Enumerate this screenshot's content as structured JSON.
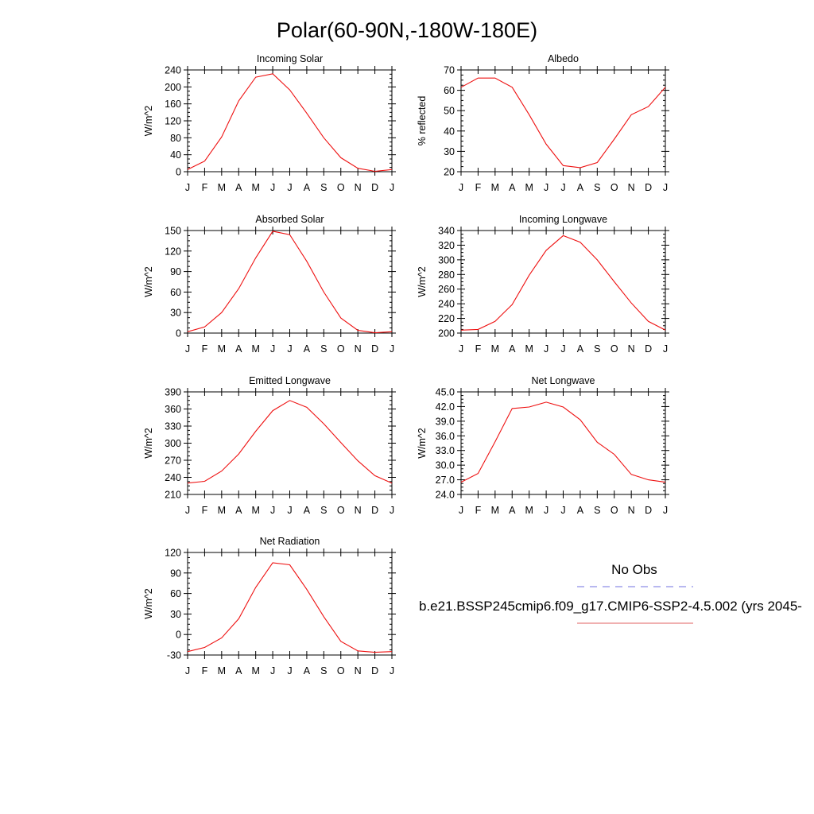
{
  "figure": {
    "title": "Polar(60-90N,-180W-180E)"
  },
  "legend": {
    "obs_label": "No Obs",
    "obs_color": "#7070e0",
    "model_label": "b.e21.BSSP245cmip6.f09_g17.CMIP6-SSP2-4.5.002 (yrs 2045-",
    "model_color": "#e06060"
  },
  "colors": {
    "line": "#ee1111",
    "axis": "#000000"
  },
  "chart_data": [
    {
      "type": "line",
      "title": "Incoming Solar",
      "ylabel": "W/m^2",
      "xlabel": "",
      "ylim": [
        0,
        240
      ],
      "yticks": [
        "0",
        "40",
        "80",
        "120",
        "160",
        "200",
        "240"
      ],
      "categories": [
        "J",
        "F",
        "M",
        "A",
        "M",
        "J",
        "J",
        "A",
        "S",
        "O",
        "N",
        "D",
        "J"
      ],
      "series": [
        {
          "name": "b.e21.BSSP245cmip6.f09_g17.CMIP6-SSP2-4.5.002",
          "values": [
            5,
            25,
            82,
            167,
            223,
            231,
            193,
            138,
            80,
            33,
            8,
            1,
            5
          ]
        }
      ]
    },
    {
      "type": "line",
      "title": "Albedo",
      "ylabel": "% reflected",
      "xlabel": "",
      "ylim": [
        20,
        70
      ],
      "yticks": [
        "20",
        "30",
        "40",
        "50",
        "60",
        "70"
      ],
      "categories": [
        "J",
        "F",
        "M",
        "A",
        "M",
        "J",
        "J",
        "A",
        "S",
        "O",
        "N",
        "D",
        "J"
      ],
      "series": [
        {
          "name": "b.e21.BSSP245cmip6.f09_g17.CMIP6-SSP2-4.5.002",
          "values": [
            61.5,
            66,
            66,
            61.5,
            48,
            33.5,
            23,
            22,
            24.5,
            36,
            48,
            52,
            61.5
          ]
        }
      ]
    },
    {
      "type": "line",
      "title": "Absorbed Solar",
      "ylabel": "W/m^2",
      "xlabel": "",
      "ylim": [
        0,
        150
      ],
      "yticks": [
        "0",
        "30",
        "60",
        "90",
        "120",
        "150"
      ],
      "categories": [
        "J",
        "F",
        "M",
        "A",
        "M",
        "J",
        "J",
        "A",
        "S",
        "O",
        "N",
        "D",
        "J"
      ],
      "series": [
        {
          "name": "b.e21.BSSP245cmip6.f09_g17.CMIP6-SSP2-4.5.002",
          "values": [
            2,
            9,
            30,
            65,
            110,
            149,
            144,
            105,
            60,
            22,
            4,
            0.5,
            2
          ]
        }
      ]
    },
    {
      "type": "line",
      "title": "Incoming Longwave",
      "ylabel": "W/m^2",
      "xlabel": "",
      "ylim": [
        200,
        340
      ],
      "yticks": [
        "200",
        "220",
        "240",
        "260",
        "280",
        "300",
        "320",
        "340"
      ],
      "categories": [
        "J",
        "F",
        "M",
        "A",
        "M",
        "J",
        "J",
        "A",
        "S",
        "O",
        "N",
        "D",
        "J"
      ],
      "series": [
        {
          "name": "b.e21.BSSP245cmip6.f09_g17.CMIP6-SSP2-4.5.002",
          "values": [
            204,
            205,
            216,
            239,
            279,
            313,
            333,
            324,
            300,
            270,
            241,
            216,
            204
          ]
        }
      ]
    },
    {
      "type": "line",
      "title": "Emitted Longwave",
      "ylabel": "W/m^2",
      "xlabel": "",
      "ylim": [
        210,
        390
      ],
      "yticks": [
        "210",
        "240",
        "270",
        "300",
        "330",
        "360",
        "390"
      ],
      "categories": [
        "J",
        "F",
        "M",
        "A",
        "M",
        "J",
        "J",
        "A",
        "S",
        "O",
        "N",
        "D",
        "J"
      ],
      "series": [
        {
          "name": "b.e21.BSSP245cmip6.f09_g17.CMIP6-SSP2-4.5.002",
          "values": [
            230,
            233,
            251,
            281,
            321,
            357,
            375,
            363,
            334,
            301,
            269,
            243,
            230
          ]
        }
      ]
    },
    {
      "type": "line",
      "title": "Net Longwave",
      "ylabel": "W/m^2",
      "xlabel": "",
      "ylim": [
        24.0,
        45.0
      ],
      "yticks": [
        "24.0",
        "27.0",
        "30.0",
        "33.0",
        "36.0",
        "39.0",
        "42.0",
        "45.0"
      ],
      "categories": [
        "J",
        "F",
        "M",
        "A",
        "M",
        "J",
        "J",
        "A",
        "S",
        "O",
        "N",
        "D",
        "J"
      ],
      "series": [
        {
          "name": "b.e21.BSSP245cmip6.f09_g17.CMIP6-SSP2-4.5.002",
          "values": [
            26.5,
            28.3,
            34.8,
            41.6,
            41.9,
            42.9,
            41.9,
            39.3,
            34.7,
            32.2,
            28.1,
            27.0,
            26.5
          ]
        }
      ]
    },
    {
      "type": "line",
      "title": "Net Radiation",
      "ylabel": "W/m^2",
      "xlabel": "",
      "ylim": [
        -30,
        120
      ],
      "yticks": [
        "-30",
        "0",
        "30",
        "60",
        "90",
        "120"
      ],
      "categories": [
        "J",
        "F",
        "M",
        "A",
        "M",
        "J",
        "J",
        "A",
        "S",
        "O",
        "N",
        "D",
        "J"
      ],
      "series": [
        {
          "name": "b.e21.BSSP245cmip6.f09_g17.CMIP6-SSP2-4.5.002",
          "values": [
            -25,
            -19,
            -5,
            23,
            69,
            105,
            102,
            66,
            26,
            -10,
            -24,
            -26,
            -25
          ]
        }
      ]
    }
  ]
}
